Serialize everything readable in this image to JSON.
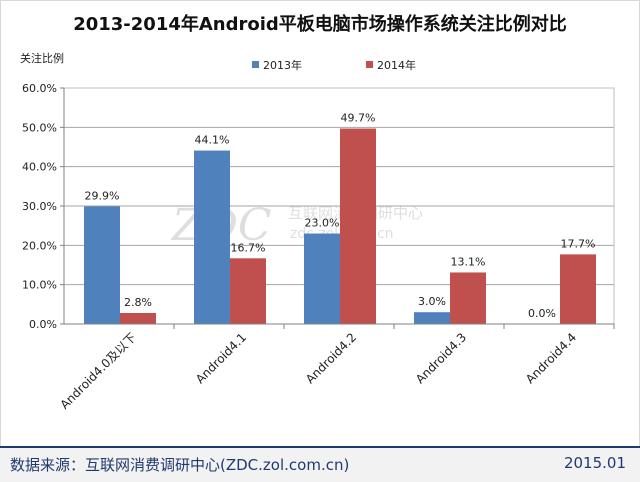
{
  "footer": {
    "source": "数据来源：互联网消费调研中心(ZDC.zol.com.cn)",
    "date": "2015.01"
  },
  "watermark": {
    "logo": "ZDC",
    "text_cn": "互联网消费调研中心",
    "text_en": "zdc.zol.com.cn"
  },
  "colors": {
    "series_2013": "#4f81bd",
    "series_2014": "#c0504d",
    "footer_accent": "#1f3a6e",
    "grid": "#a6a6a6"
  },
  "chart_data": {
    "type": "bar",
    "title": "2013-2014年Android平板电脑市场操作系统关注比例对比",
    "ylabel": "关注比例",
    "xlabel": "",
    "categories": [
      "Android4.0及以下",
      "Android4.1",
      "Android4.2",
      "Android4.3",
      "Android4.4"
    ],
    "series": [
      {
        "name": "2013年",
        "values": [
          29.9,
          44.1,
          23.0,
          3.0,
          0.0
        ],
        "labels": [
          "29.9%",
          "44.1%",
          "23.0%",
          "3.0%",
          "0.0%"
        ]
      },
      {
        "name": "2014年",
        "values": [
          2.8,
          16.7,
          49.7,
          13.1,
          17.7
        ],
        "labels": [
          "2.8%",
          "16.7%",
          "49.7%",
          "13.1%",
          "17.7%"
        ]
      }
    ],
    "ylim": [
      0,
      60
    ],
    "yticks": [
      0,
      10,
      20,
      30,
      40,
      50,
      60
    ],
    "ytick_labels": [
      "0.0%",
      "10.0%",
      "20.0%",
      "30.0%",
      "40.0%",
      "50.0%",
      "60.0%"
    ],
    "grid": true,
    "legend_position": "top"
  }
}
